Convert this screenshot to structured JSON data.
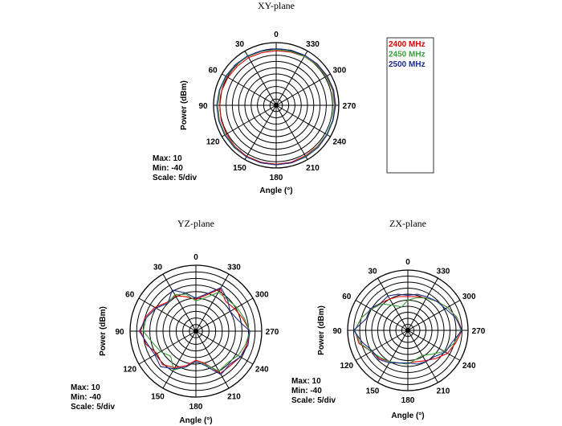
{
  "chart_data": [
    {
      "type": "polar",
      "title": "XY-plane",
      "xlabel": "Angle  (°)",
      "ylabel": "Power  (dBm)",
      "rlim": [
        -40,
        10
      ],
      "scale_step": 5,
      "angle_direction": "counterclockwise",
      "zero_at": "top",
      "angle_ticks": [
        "0",
        "30",
        "60",
        "90",
        "120",
        "150",
        "180",
        "210",
        "240",
        "270",
        "300",
        "330"
      ],
      "info": [
        "Max: 10",
        "Min: -40",
        "Scale: 5/div"
      ],
      "legend": "right",
      "angles": [
        0,
        15,
        30,
        45,
        60,
        75,
        90,
        105,
        120,
        135,
        150,
        165,
        180,
        195,
        210,
        225,
        240,
        255,
        270,
        285,
        300,
        315,
        330,
        345
      ],
      "series": [
        {
          "name": "2400 MHz",
          "color": "#e00000",
          "values": [
            3.5,
            3.5,
            4,
            4,
            4.5,
            5,
            5,
            5.5,
            6,
            6.5,
            7,
            7,
            7,
            7,
            6.5,
            6.5,
            6.5,
            7,
            7,
            7,
            6.5,
            6,
            5,
            4
          ]
        },
        {
          "name": "2450 MHz",
          "color": "#3a9e3a",
          "values": [
            4.5,
            4.5,
            5,
            5.5,
            6,
            6.5,
            6.5,
            7,
            7,
            7,
            7.5,
            7.5,
            7.5,
            7.5,
            7,
            7,
            6.5,
            6.5,
            6.5,
            6.5,
            6,
            5.5,
            5,
            4.5
          ]
        },
        {
          "name": "2500 MHz",
          "color": "#1c2a8c",
          "values": [
            5,
            5,
            5.5,
            6,
            6.5,
            7,
            7.5,
            7.5,
            7.5,
            7.5,
            7.5,
            7.5,
            7.5,
            7.5,
            7.5,
            7.5,
            7,
            7,
            7.5,
            7.5,
            7,
            6.5,
            6,
            5.5
          ]
        }
      ]
    },
    {
      "type": "polar",
      "title": "YZ-plane",
      "xlabel": "Angle  (°)",
      "ylabel": "Power  (dBm)",
      "rlim": [
        -40,
        10
      ],
      "scale_step": 5,
      "angle_direction": "counterclockwise",
      "zero_at": "top",
      "angle_ticks": [
        "0",
        "30",
        "60",
        "90",
        "120",
        "150",
        "180",
        "210",
        "240",
        "270",
        "300",
        "330"
      ],
      "info": [
        "Max: 10",
        "Min: -40",
        "Scale: 5/div"
      ],
      "angles": [
        0,
        15,
        30,
        45,
        60,
        75,
        90,
        105,
        120,
        135,
        150,
        165,
        180,
        195,
        210,
        225,
        240,
        255,
        270,
        285,
        300,
        315,
        330,
        345
      ],
      "series": [
        {
          "name": "2400 MHz",
          "color": "#e00000",
          "values": [
            -16,
            -13,
            -9,
            -9,
            -4,
            0,
            2,
            -1,
            -6,
            -4,
            -8,
            -13,
            -18,
            -15,
            -3,
            -3,
            -1,
            0,
            1,
            -3,
            -6,
            -8,
            -3,
            -12
          ]
        },
        {
          "name": "2450 MHz",
          "color": "#3a9e3a",
          "values": [
            -17,
            -11,
            -8,
            -10,
            -5,
            -1,
            0,
            -6,
            -9,
            -13,
            -6,
            -12,
            -17,
            -14,
            -5,
            -6,
            -3,
            -1,
            1,
            -2,
            -4,
            -6,
            -6,
            -14
          ]
        },
        {
          "name": "2500 MHz",
          "color": "#1c2a8c",
          "values": [
            -15,
            -10,
            -4,
            -10,
            -5,
            -1,
            3,
            -2,
            -4,
            -2,
            -7,
            -12,
            -17,
            -13,
            -2,
            -4,
            -1,
            1,
            1,
            -7,
            -10,
            -6,
            -2,
            -11
          ]
        }
      ]
    },
    {
      "type": "polar",
      "title": "ZX-plane",
      "xlabel": "Angle  (°)",
      "ylabel": "Power  (dBm)",
      "rlim": [
        -40,
        10
      ],
      "scale_step": 5,
      "angle_direction": "counterclockwise",
      "zero_at": "top",
      "angle_ticks": [
        "0",
        "30",
        "60",
        "90",
        "120",
        "150",
        "180",
        "210",
        "240",
        "270",
        "300",
        "330"
      ],
      "info": [
        "Max: 10",
        "Min: -40",
        "Scale: 5/div"
      ],
      "angles": [
        0,
        15,
        30,
        45,
        60,
        75,
        90,
        105,
        120,
        135,
        150,
        165,
        180,
        195,
        210,
        225,
        240,
        255,
        270,
        285,
        300,
        315,
        330,
        345
      ],
      "series": [
        {
          "name": "2400 MHz",
          "color": "#e00000",
          "values": [
            -12,
            -11,
            -10,
            -8,
            -5,
            0,
            4,
            2,
            -5,
            -7,
            -10,
            -12,
            -13,
            -13,
            -11,
            -7,
            -2,
            1,
            5,
            2,
            -2,
            -6,
            -9,
            -11
          ]
        },
        {
          "name": "2450 MHz",
          "color": "#3a9e3a",
          "values": [
            -15,
            -20,
            -16,
            -9,
            -5,
            0,
            4,
            1,
            -5,
            -8,
            -10,
            -12,
            -12,
            -15,
            -16,
            -12,
            -5,
            0,
            4,
            2,
            -2,
            -6,
            -9,
            -12
          ]
        },
        {
          "name": "2500 MHz",
          "color": "#1c2a8c",
          "values": [
            -11,
            -9,
            -7,
            -8,
            -4,
            -4,
            5,
            -1,
            -6,
            -6,
            -9,
            -12,
            -13,
            -11,
            -10,
            -9,
            -4,
            -2,
            5,
            1,
            -4,
            -6,
            -8,
            -9
          ]
        }
      ]
    }
  ]
}
